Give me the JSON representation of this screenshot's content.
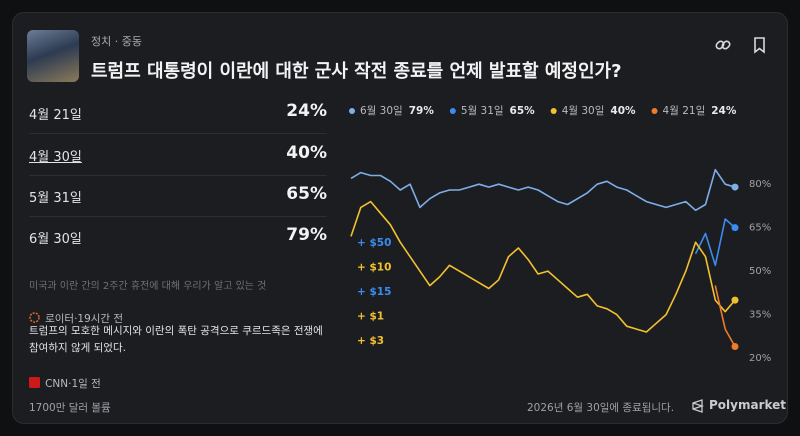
{
  "header": {
    "breadcrumbs": "정치 · 중동",
    "title": "트럼프 대통령이 이란에 대한 군사 작전 종료를 언제 발표할 예정인가?"
  },
  "outcomes": [
    {
      "label": "4월 21일",
      "chance": "24%"
    },
    {
      "label": "4월 30일",
      "chance": "40%"
    },
    {
      "label": "5월 31일",
      "chance": "65%"
    },
    {
      "label": "6월 30일",
      "chance": "79%"
    }
  ],
  "news_headline": "미국과 이란 간의 2주간 휴전에 대해 우리가 알고 있는 것",
  "news": [
    {
      "source": "로이터·19시간 전",
      "text": "트럼프의 모호한 메시지와 이란의 폭탄 공격으로 쿠르드족은 전쟁에 참여하지 않게 되었다."
    },
    {
      "source": "CNN·1일 전"
    }
  ],
  "footer": {
    "volume": "1700만 달러 볼륨",
    "end_date": "2026년 6월 30일에 종료됩니다.",
    "brand": "Polymarket"
  },
  "chart_data": {
    "type": "line",
    "ylim": [
      19,
      88
    ],
    "yticks": [
      {
        "value": 20,
        "label": "20%"
      },
      {
        "value": 35,
        "label": "35%"
      },
      {
        "value": 50,
        "label": "50%"
      },
      {
        "value": 65,
        "label": "65%"
      },
      {
        "value": 80,
        "label": "80%"
      }
    ],
    "series": [
      {
        "name": "6월 30일",
        "current": "79%",
        "color": "#7eaee8",
        "values": [
          82,
          84,
          83,
          83,
          81,
          78,
          80,
          72,
          75,
          77,
          78,
          78,
          79,
          80,
          79,
          80,
          79,
          78,
          79,
          78,
          76,
          74,
          73,
          75,
          77,
          80,
          81,
          79,
          78,
          76,
          74,
          73,
          72,
          73,
          74,
          71,
          73,
          85,
          80,
          79
        ]
      },
      {
        "name": "5월 31일",
        "current": "65%",
        "color": "#3b8cf0",
        "values": [
          null,
          null,
          null,
          null,
          null,
          null,
          null,
          null,
          null,
          null,
          null,
          null,
          null,
          null,
          null,
          null,
          null,
          null,
          null,
          null,
          null,
          null,
          null,
          null,
          null,
          null,
          null,
          null,
          null,
          null,
          null,
          null,
          null,
          null,
          null,
          56,
          63,
          52,
          68,
          65
        ]
      },
      {
        "name": "4월 30일",
        "current": "40%",
        "color": "#f2c12e",
        "values": [
          62,
          72,
          74,
          70,
          66,
          60,
          55,
          50,
          45,
          48,
          52,
          50,
          48,
          46,
          44,
          47,
          55,
          58,
          54,
          49,
          50,
          47,
          44,
          41,
          42,
          38,
          37,
          35,
          31,
          30,
          29,
          32,
          35,
          42,
          50,
          60,
          55,
          40,
          36,
          40
        ]
      },
      {
        "name": "4월 21일",
        "current": "24%",
        "color": "#f07b2a",
        "values": [
          null,
          null,
          null,
          null,
          null,
          null,
          null,
          null,
          null,
          null,
          null,
          null,
          null,
          null,
          null,
          null,
          null,
          null,
          null,
          null,
          null,
          null,
          null,
          null,
          null,
          null,
          null,
          null,
          null,
          null,
          null,
          null,
          null,
          null,
          null,
          null,
          null,
          45,
          30,
          24
        ]
      }
    ],
    "annotations": [
      {
        "text": "+ $50",
        "color": "#3b8cf0"
      },
      {
        "text": "+ $10",
        "color": "#f2c12e"
      },
      {
        "text": "+ $15",
        "color": "#3b8cf0"
      },
      {
        "text": "+ $1",
        "color": "#f2c12e"
      },
      {
        "text": "+ $3",
        "color": "#f2c12e"
      }
    ]
  }
}
